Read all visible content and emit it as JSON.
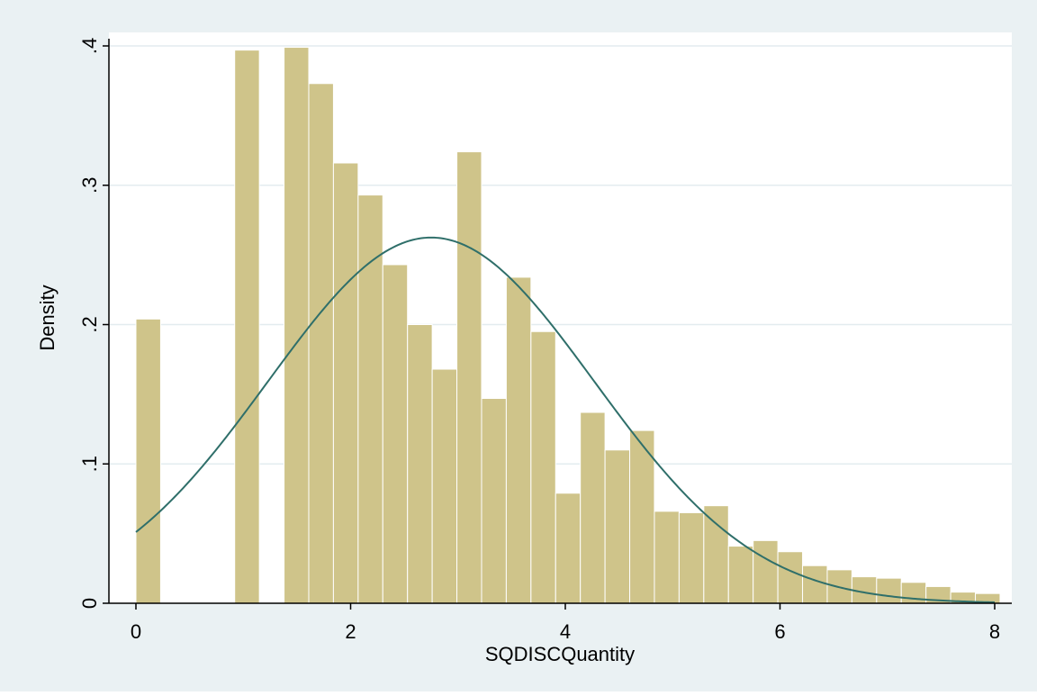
{
  "chart_data": {
    "type": "bar",
    "subtype": "histogram with normal density overlay",
    "xlabel": "SQDISCQuantity",
    "ylabel": "Density",
    "xlim": [
      0,
      8
    ],
    "ylim": [
      0,
      0.4
    ],
    "x_ticks": [
      {
        "value": 0,
        "label": "0"
      },
      {
        "value": 2,
        "label": "2"
      },
      {
        "value": 4,
        "label": "4"
      },
      {
        "value": 6,
        "label": "6"
      },
      {
        "value": 8,
        "label": "8"
      }
    ],
    "y_ticks": [
      {
        "value": 0,
        "label": "0"
      },
      {
        "value": 0.1,
        "label": ".1"
      },
      {
        "value": 0.2,
        "label": ".2"
      },
      {
        "value": 0.3,
        "label": ".3"
      },
      {
        "value": 0.4,
        "label": ".4"
      }
    ],
    "grid": "horizontal",
    "bin_width": 0.23,
    "bins": [
      {
        "x_start": 0.0,
        "density": 0.204
      },
      {
        "x_start": 0.92,
        "density": 0.397
      },
      {
        "x_start": 1.38,
        "density": 0.399
      },
      {
        "x_start": 1.61,
        "density": 0.373
      },
      {
        "x_start": 1.84,
        "density": 0.316
      },
      {
        "x_start": 2.07,
        "density": 0.293
      },
      {
        "x_start": 2.3,
        "density": 0.243
      },
      {
        "x_start": 2.53,
        "density": 0.2
      },
      {
        "x_start": 2.76,
        "density": 0.168
      },
      {
        "x_start": 2.99,
        "density": 0.324
      },
      {
        "x_start": 3.22,
        "density": 0.147
      },
      {
        "x_start": 3.45,
        "density": 0.234
      },
      {
        "x_start": 3.68,
        "density": 0.195
      },
      {
        "x_start": 3.91,
        "density": 0.079
      },
      {
        "x_start": 4.14,
        "density": 0.137
      },
      {
        "x_start": 4.37,
        "density": 0.11
      },
      {
        "x_start": 4.6,
        "density": 0.124
      },
      {
        "x_start": 4.83,
        "density": 0.066
      },
      {
        "x_start": 5.06,
        "density": 0.065
      },
      {
        "x_start": 5.29,
        "density": 0.07
      },
      {
        "x_start": 5.52,
        "density": 0.041
      },
      {
        "x_start": 5.75,
        "density": 0.045
      },
      {
        "x_start": 5.98,
        "density": 0.037
      },
      {
        "x_start": 6.21,
        "density": 0.027
      },
      {
        "x_start": 6.44,
        "density": 0.024
      },
      {
        "x_start": 6.67,
        "density": 0.019
      },
      {
        "x_start": 6.9,
        "density": 0.018
      },
      {
        "x_start": 7.13,
        "density": 0.015
      },
      {
        "x_start": 7.36,
        "density": 0.012
      },
      {
        "x_start": 7.59,
        "density": 0.008
      },
      {
        "x_start": 7.82,
        "density": 0.007
      }
    ],
    "normal_curve": {
      "mean": 2.75,
      "sd": 1.52
    },
    "colors": {
      "bar_fill": "#cfc48a",
      "bar_edge": "#ffffff",
      "curve": "#2f6f6a",
      "outer_background": "#eaf1f3",
      "plot_background": "#ffffff",
      "grid": "#e3ecef",
      "axis": "#000000"
    }
  }
}
